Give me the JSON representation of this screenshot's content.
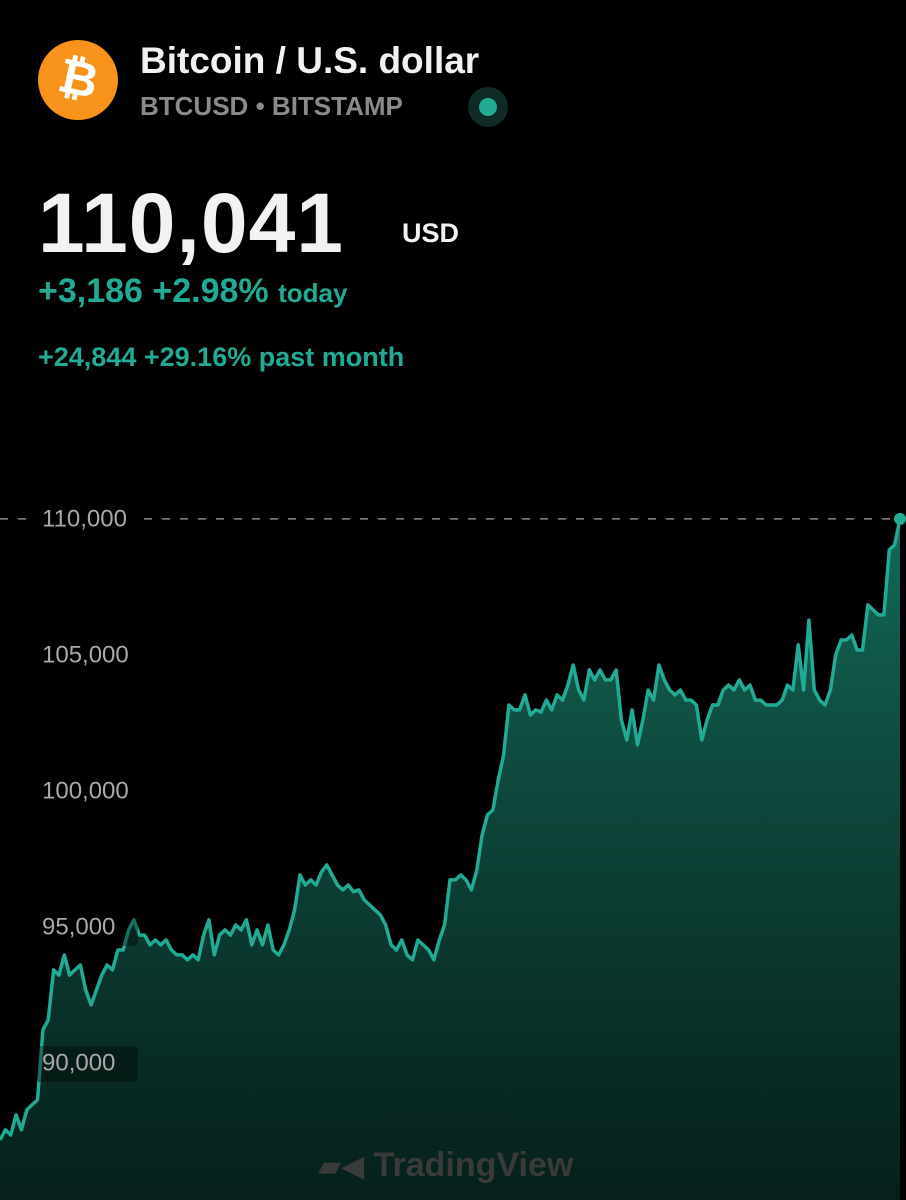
{
  "header": {
    "title": "Bitcoin / U.S. dollar",
    "symbol": "BTCUSD",
    "separator": "•",
    "exchange": "BITSTAMP"
  },
  "quote": {
    "price": "110,041",
    "currency": "USD",
    "day_change": "+3,186",
    "day_change_pct": "+2.98%",
    "day_label": "today",
    "month_change": "+24,844",
    "month_change_pct": "+29.16%",
    "month_label": "past month"
  },
  "watermark": "TradingView",
  "chart_data": {
    "type": "area",
    "color": "#22ab94",
    "ylim": [
      85000,
      110000
    ],
    "yticks": [
      {
        "value": 110000,
        "label": "110,000"
      },
      {
        "value": 105000,
        "label": "105,000"
      },
      {
        "value": 100000,
        "label": "100,000"
      },
      {
        "value": 95000,
        "label": "95,000"
      },
      {
        "value": 90000,
        "label": "90,000"
      }
    ],
    "values": [
      87210,
      87580,
      87390,
      88130,
      87580,
      88310,
      88500,
      88680,
      91250,
      91620,
      93460,
      93270,
      94010,
      93270,
      93460,
      93640,
      92720,
      92170,
      92720,
      93270,
      93640,
      93460,
      94190,
      94190,
      94930,
      95300,
      94740,
      94740,
      94380,
      94560,
      94380,
      94560,
      94190,
      94010,
      94010,
      93830,
      94010,
      93830,
      94740,
      95300,
      94010,
      94740,
      94930,
      94740,
      95110,
      94930,
      95300,
      94380,
      94930,
      94380,
      95110,
      94190,
      94010,
      94380,
      94930,
      95660,
      96950,
      96580,
      96770,
      96580,
      97060,
      97320,
      96950,
      96580,
      96400,
      96580,
      96330,
      96400,
      96030,
      95850,
      95660,
      95480,
      95110,
      94380,
      94190,
      94560,
      94010,
      93830,
      94560,
      94380,
      94190,
      93830,
      94560,
      95110,
      96770,
      96770,
      96950,
      96770,
      96400,
      97130,
      98420,
      99160,
      99340,
      100440,
      101360,
      103200,
      103020,
      103020,
      103570,
      102830,
      103020,
      102940,
      103380,
      103020,
      103570,
      103380,
      103930,
      104670,
      103750,
      103380,
      104490,
      104120,
      104490,
      104120,
      104120,
      104490,
      102650,
      101910,
      103020,
      101730,
      102650,
      103750,
      103380,
      104670,
      104120,
      103750,
      103570,
      103750,
      103380,
      103380,
      103200,
      101910,
      102650,
      103200,
      103200,
      103750,
      103930,
      103750,
      104120,
      103750,
      103930,
      103380,
      103380,
      103200,
      103200,
      103200,
      103380,
      103930,
      103750,
      105410,
      103750,
      106320,
      103750,
      103380,
      103200,
      103750,
      105040,
      105590,
      105590,
      105770,
      105220,
      105220,
      106880,
      106690,
      106510,
      106510,
      108900,
      109080,
      110041
    ]
  }
}
